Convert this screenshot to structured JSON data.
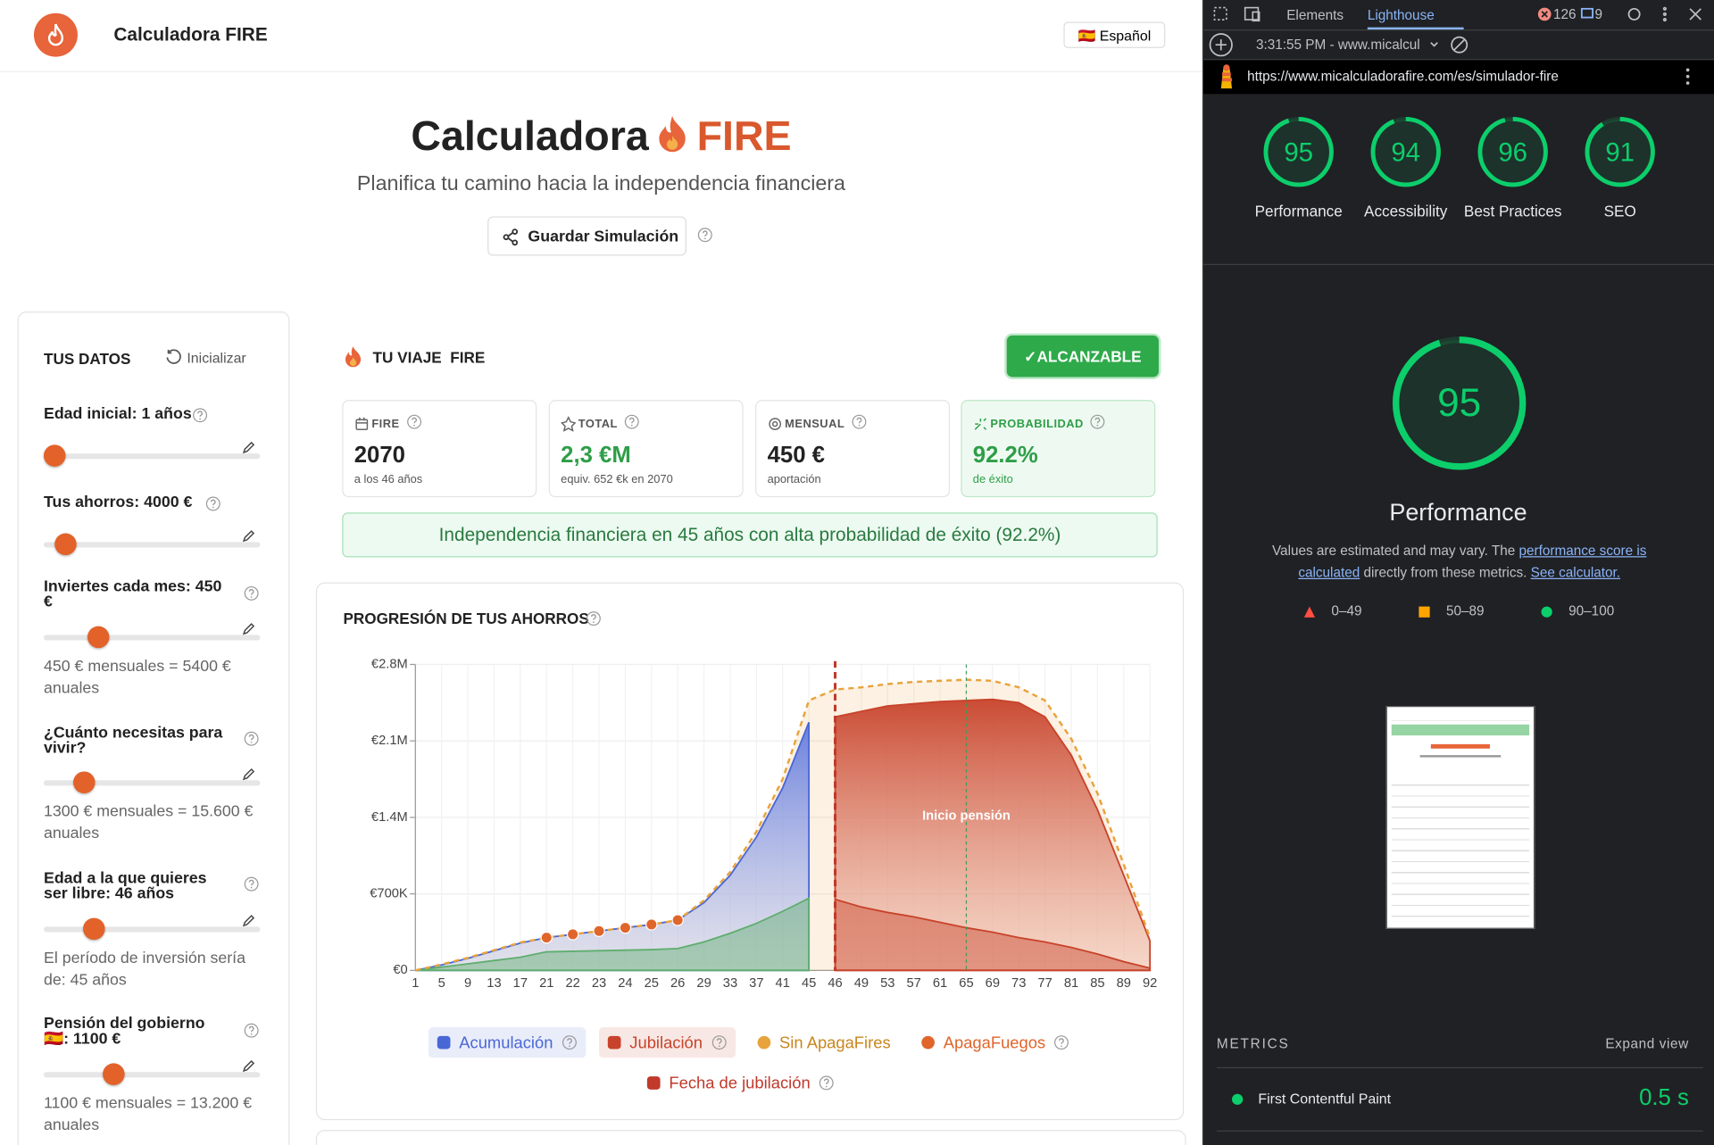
{
  "header": {
    "app_name": "Calculadora FIRE",
    "language": "🇪🇸 Español"
  },
  "hero": {
    "title": "Calculadora",
    "title_accent": "FIRE",
    "subtitle": "Planifica tu camino hacia la independencia financiera",
    "save_button": "Guardar Simulación"
  },
  "sidebar": {
    "title": "TUS DATOS",
    "reset": "Inicializar",
    "fields": [
      {
        "label": "Edad inicial: 1 años"
      },
      {
        "label": "Tus ahorros: 4000 €"
      },
      {
        "label": "Inviertes cada mes: 450 €",
        "note": "450 € mensuales = 5400 € anuales"
      },
      {
        "label": "¿Cuánto necesitas para vivir?",
        "note": "1300 € mensuales = 15.600 € anuales"
      },
      {
        "label": "Edad a la que quieres ser libre: 46 años",
        "note": "El período de inversión sería de: 45 años"
      },
      {
        "label": "Pensión del gobierno 🇪🇸: 1100 €",
        "note": "1100 € mensuales = 13.200 € anuales"
      }
    ]
  },
  "journey": {
    "title": "TU VIAJE  FIRE",
    "status": "✓ALCANZABLE",
    "cards": [
      {
        "label": "FIRE",
        "value": "2070",
        "sub": "a los 46 años"
      },
      {
        "label": "TOTAL",
        "value": "2,3 €M",
        "sub": "equiv. 652 €k en 2070"
      },
      {
        "label": "MENSUAL",
        "value": "450 €",
        "sub": "aportación"
      },
      {
        "label": "PROBABILIDAD",
        "value": "92.2%",
        "sub": "de éxito"
      }
    ],
    "banner": "Independencia financiera en 45 años con alta probabilidad de éxito (92.2%)"
  },
  "chart_data": {
    "type": "area",
    "title": "PROGRESIÓN DE TUS AHORROS",
    "categories": [
      1,
      5,
      9,
      13,
      17,
      21,
      22,
      23,
      24,
      25,
      26,
      29,
      33,
      37,
      41,
      45,
      46,
      49,
      53,
      57,
      61,
      65,
      69,
      73,
      77,
      81,
      85,
      89,
      92
    ],
    "ylim": [
      0,
      2800000
    ],
    "yticks": [
      {
        "value": 0,
        "label": "€0"
      },
      {
        "value": 700000,
        "label": "€700K"
      },
      {
        "value": 1400000,
        "label": "€1.4M"
      },
      {
        "value": 2100000,
        "label": "€2.1M"
      },
      {
        "value": 2800000,
        "label": "€2.8M"
      }
    ],
    "grid": true,
    "series": [
      {
        "name": "Acumulación",
        "color": "#4a67d6",
        "style": "area",
        "highlighted": true,
        "values": [
          0,
          50000,
          110000,
          180000,
          250000,
          300000,
          330000,
          360000,
          390000,
          420000,
          460000,
          620000,
          870000,
          1220000,
          1670000,
          2270000,
          null,
          null,
          null,
          null,
          null,
          null,
          null,
          null,
          null,
          null,
          null,
          null,
          null
        ]
      },
      {
        "name": "Jubilación",
        "color": "#c8432b",
        "style": "area",
        "highlighted": true,
        "values": [
          null,
          null,
          null,
          null,
          null,
          null,
          null,
          null,
          null,
          null,
          null,
          null,
          null,
          null,
          null,
          null,
          2320000,
          2370000,
          2420000,
          2440000,
          2460000,
          2470000,
          2480000,
          2450000,
          2320000,
          1970000,
          1470000,
          870000,
          270000
        ]
      },
      {
        "name": "Sin ApagaFires",
        "color": "#e8a33d",
        "style": "dashed_area",
        "values": [
          0,
          55000,
          115000,
          185000,
          255000,
          300000,
          330000,
          360000,
          390000,
          420000,
          460000,
          640000,
          900000,
          1270000,
          1750000,
          2470000,
          2570000,
          2590000,
          2620000,
          2640000,
          2650000,
          2660000,
          2650000,
          2590000,
          2470000,
          2120000,
          1620000,
          970000,
          300000
        ]
      },
      {
        "name": "ApagaFuegos",
        "color": "#e0652b",
        "style": "dots",
        "values": [
          null,
          null,
          null,
          null,
          null,
          300000,
          330000,
          360000,
          390000,
          420000,
          460000,
          null,
          null,
          null,
          null,
          null,
          null,
          null,
          null,
          null,
          null,
          null,
          null,
          null,
          null,
          null,
          null,
          null,
          null
        ]
      },
      {
        "color": "#5fae6e",
        "style": "area",
        "values": [
          0,
          30000,
          60000,
          90000,
          120000,
          170000,
          175000,
          180000,
          185000,
          190000,
          200000,
          260000,
          340000,
          430000,
          540000,
          660000,
          null,
          null,
          null,
          null,
          null,
          null,
          null,
          null,
          null,
          null,
          null,
          null,
          null
        ]
      },
      {
        "color": "#c8432b",
        "style": "area",
        "values": [
          null,
          null,
          null,
          null,
          null,
          null,
          null,
          null,
          null,
          null,
          null,
          null,
          null,
          null,
          null,
          null,
          650000,
          580000,
          530000,
          490000,
          440000,
          390000,
          350000,
          300000,
          260000,
          210000,
          150000,
          80000,
          20000
        ]
      }
    ],
    "marker": {
      "name": "Fecha de jubilación",
      "at": 46,
      "color": "#c0392b"
    },
    "annotation": {
      "text": "Inicio pensión",
      "at": 65,
      "color": "#3f9a5a"
    }
  },
  "devtools": {
    "tabs": [
      "Elements",
      "Lighthouse"
    ],
    "errors": "126",
    "messages": "9",
    "session": "3:31:55 PM - www.micalcul",
    "url": "https://www.micalculadorafire.com/es/simulador-fire",
    "scores": [
      {
        "label": "Performance",
        "value": 95
      },
      {
        "label": "Accessibility",
        "value": 94
      },
      {
        "label": "Best Practices",
        "value": 96
      },
      {
        "label": "SEO",
        "value": 91
      }
    ],
    "main_score": {
      "label": "Performance",
      "value": 95
    },
    "description": [
      "Values are estimated and may vary. The ",
      "performance score is calculated",
      " directly from these metrics. ",
      "See calculator."
    ],
    "ranges": [
      "0–49",
      "50–89",
      "90–100"
    ],
    "metrics_title": "METRICS",
    "expand": "Expand view",
    "metrics": [
      {
        "name": "First Contentful Paint",
        "value": "0.5 s"
      }
    ]
  }
}
